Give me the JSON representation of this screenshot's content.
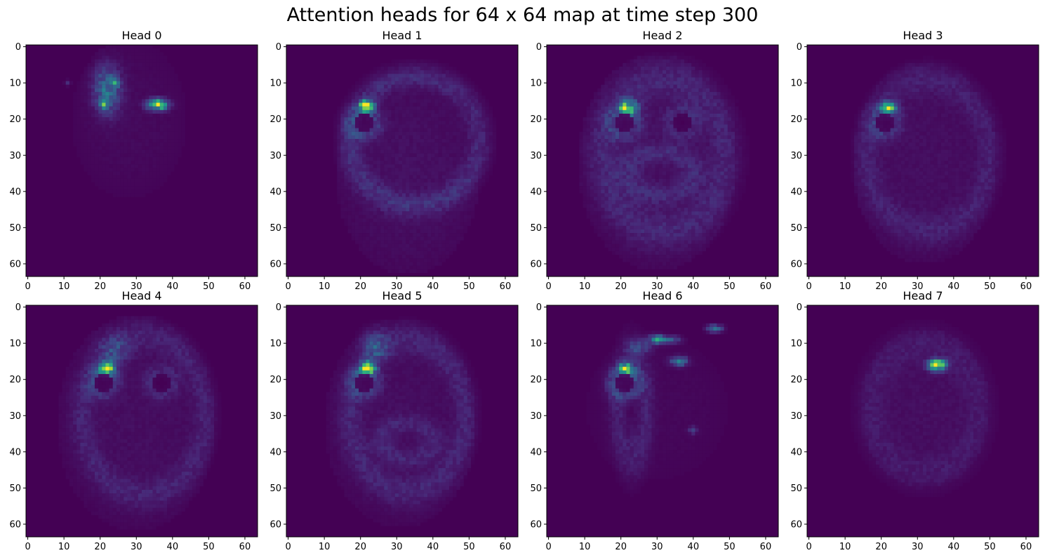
{
  "figure": {
    "title": "Attention heads for 64 x 64 map at time step 300"
  },
  "chart_data": [
    {
      "type": "heatmap",
      "title": "Head 0",
      "grid_size": 64,
      "xlim": [
        -0.5,
        63.5
      ],
      "ylim": [
        63.5,
        -0.5
      ],
      "xticks": [
        0,
        10,
        20,
        30,
        40,
        50,
        60
      ],
      "yticks": [
        0,
        10,
        20,
        30,
        40,
        50,
        60
      ],
      "colormap": "viridis",
      "hotspots": [
        {
          "x": 36,
          "y": 16,
          "rx": 2.6,
          "ry": 1.4,
          "v": 1.0
        },
        {
          "x": 22,
          "y": 12,
          "rx": 3.5,
          "ry": 6.0,
          "v": 0.42
        },
        {
          "x": 21,
          "y": 16,
          "rx": 1.0,
          "ry": 1.0,
          "v": 0.55
        },
        {
          "x": 24,
          "y": 10,
          "rx": 1.0,
          "ry": 1.0,
          "v": 0.45
        },
        {
          "x": 11,
          "y": 10,
          "rx": 0.8,
          "ry": 0.8,
          "v": 0.12
        }
      ],
      "background_regions": [
        {
          "x": 28,
          "y": 20,
          "rx": 16,
          "ry": 22,
          "v": 0.03
        }
      ]
    },
    {
      "type": "heatmap",
      "title": "Head 1",
      "grid_size": 64,
      "xlim": [
        -0.5,
        63.5
      ],
      "ylim": [
        63.5,
        -0.5
      ],
      "xticks": [
        0,
        10,
        20,
        30,
        40,
        50,
        60
      ],
      "yticks": [
        0,
        10,
        20,
        30,
        40,
        50,
        60
      ],
      "colormap": "viridis",
      "hotspots": [
        {
          "x": 22,
          "y": 16.5,
          "rx": 1.8,
          "ry": 1.4,
          "v": 1.0
        },
        {
          "x": 21,
          "y": 16,
          "rx": 1.0,
          "ry": 1.0,
          "v": 0.6
        }
      ],
      "rings": [
        {
          "x": 35,
          "y": 26,
          "rx": 18,
          "ry": 18,
          "w": 2.2,
          "v": 0.12
        },
        {
          "x": 21,
          "y": 21,
          "rx": 3.2,
          "ry": 3.0,
          "w": 1.6,
          "v": 0.16
        }
      ],
      "holes": [
        {
          "x": 21,
          "y": 21,
          "r": 2.5
        }
      ],
      "background_regions": [
        {
          "x": 33,
          "y": 35,
          "rx": 20,
          "ry": 28,
          "v": 0.05
        }
      ]
    },
    {
      "type": "heatmap",
      "title": "Head 2",
      "grid_size": 64,
      "xlim": [
        -0.5,
        63.5
      ],
      "ylim": [
        63.5,
        -0.5
      ],
      "xticks": [
        0,
        10,
        20,
        30,
        40,
        50,
        60
      ],
      "yticks": [
        0,
        10,
        20,
        30,
        40,
        50,
        60
      ],
      "colormap": "viridis",
      "hotspots": [
        {
          "x": 22,
          "y": 17,
          "rx": 2.4,
          "ry": 2.2,
          "v": 1.0
        },
        {
          "x": 21,
          "y": 17,
          "rx": 1.0,
          "ry": 1.0,
          "v": 0.7
        }
      ],
      "rings": [
        {
          "x": 32,
          "y": 30,
          "rx": 17,
          "ry": 21,
          "w": 3.0,
          "v": 0.16
        },
        {
          "x": 21,
          "y": 21,
          "rx": 3.4,
          "ry": 3.2,
          "w": 1.8,
          "v": 0.2
        },
        {
          "x": 37,
          "y": 21,
          "rx": 3.6,
          "ry": 3.4,
          "w": 1.6,
          "v": 0.14
        },
        {
          "x": 31,
          "y": 35,
          "rx": 9,
          "ry": 6,
          "w": 1.8,
          "v": 0.16
        }
      ],
      "holes": [
        {
          "x": 21,
          "y": 21,
          "r": 2.5
        },
        {
          "x": 37,
          "y": 21,
          "r": 2.6
        }
      ],
      "background_regions": [
        {
          "x": 30,
          "y": 32,
          "rx": 22,
          "ry": 30,
          "v": 0.08
        }
      ]
    },
    {
      "type": "heatmap",
      "title": "Head 3",
      "grid_size": 64,
      "xlim": [
        -0.5,
        63.5
      ],
      "ylim": [
        63.5,
        -0.5
      ],
      "xticks": [
        0,
        10,
        20,
        30,
        40,
        50,
        60
      ],
      "yticks": [
        0,
        10,
        20,
        30,
        40,
        50,
        60
      ],
      "colormap": "viridis",
      "hotspots": [
        {
          "x": 22,
          "y": 17,
          "rx": 2.0,
          "ry": 1.6,
          "v": 1.0
        }
      ],
      "rings": [
        {
          "x": 33,
          "y": 30,
          "rx": 17,
          "ry": 21,
          "w": 2.4,
          "v": 0.1
        },
        {
          "x": 21,
          "y": 21,
          "rx": 3.2,
          "ry": 3.0,
          "w": 1.6,
          "v": 0.16
        }
      ],
      "holes": [
        {
          "x": 21,
          "y": 21,
          "r": 2.5
        }
      ],
      "background_regions": [
        {
          "x": 32,
          "y": 32,
          "rx": 20,
          "ry": 28,
          "v": 0.06
        }
      ]
    },
    {
      "type": "heatmap",
      "title": "Head 4",
      "grid_size": 64,
      "xlim": [
        -0.5,
        63.5
      ],
      "ylim": [
        63.5,
        -0.5
      ],
      "xticks": [
        0,
        10,
        20,
        30,
        40,
        50,
        60
      ],
      "yticks": [
        0,
        10,
        20,
        30,
        40,
        50,
        60
      ],
      "colormap": "viridis",
      "hotspots": [
        {
          "x": 22,
          "y": 17,
          "rx": 2.0,
          "ry": 1.8,
          "v": 1.0
        },
        {
          "x": 24,
          "y": 12,
          "rx": 4.0,
          "ry": 4.0,
          "v": 0.2
        }
      ],
      "rings": [
        {
          "x": 32,
          "y": 30,
          "rx": 17,
          "ry": 22,
          "w": 2.2,
          "v": 0.1
        },
        {
          "x": 21,
          "y": 21,
          "rx": 3.0,
          "ry": 2.8,
          "w": 1.6,
          "v": 0.14
        },
        {
          "x": 37,
          "y": 21,
          "rx": 3.4,
          "ry": 3.2,
          "w": 1.4,
          "v": 0.1
        }
      ],
      "holes": [
        {
          "x": 21,
          "y": 21,
          "r": 2.4
        },
        {
          "x": 37,
          "y": 21,
          "r": 2.4
        }
      ],
      "background_regions": [
        {
          "x": 30,
          "y": 32,
          "rx": 22,
          "ry": 30,
          "v": 0.05
        }
      ]
    },
    {
      "type": "heatmap",
      "title": "Head 5",
      "grid_size": 64,
      "xlim": [
        -0.5,
        63.5
      ],
      "ylim": [
        63.5,
        -0.5
      ],
      "xticks": [
        0,
        10,
        20,
        30,
        40,
        50,
        60
      ],
      "yticks": [
        0,
        10,
        20,
        30,
        40,
        50,
        60
      ],
      "colormap": "viridis",
      "hotspots": [
        {
          "x": 22,
          "y": 17,
          "rx": 2.0,
          "ry": 1.8,
          "v": 1.0
        },
        {
          "x": 24,
          "y": 11,
          "rx": 3.5,
          "ry": 4.0,
          "v": 0.28
        }
      ],
      "rings": [
        {
          "x": 33,
          "y": 30,
          "rx": 16,
          "ry": 21,
          "w": 2.2,
          "v": 0.11
        },
        {
          "x": 21,
          "y": 21,
          "rx": 3.0,
          "ry": 2.8,
          "w": 1.6,
          "v": 0.15
        },
        {
          "x": 33,
          "y": 37,
          "rx": 7,
          "ry": 5,
          "w": 1.6,
          "v": 0.1
        }
      ],
      "holes": [
        {
          "x": 21,
          "y": 21,
          "r": 2.4
        }
      ],
      "background_regions": [
        {
          "x": 31,
          "y": 32,
          "rx": 21,
          "ry": 29,
          "v": 0.05
        }
      ]
    },
    {
      "type": "heatmap",
      "title": "Head 6",
      "grid_size": 64,
      "xlim": [
        -0.5,
        63.5
      ],
      "ylim": [
        63.5,
        -0.5
      ],
      "xticks": [
        0,
        10,
        20,
        30,
        40,
        50,
        60
      ],
      "yticks": [
        0,
        10,
        20,
        30,
        40,
        50,
        60
      ],
      "colormap": "viridis",
      "hotspots": [
        {
          "x": 21.5,
          "y": 17,
          "rx": 1.8,
          "ry": 1.6,
          "v": 1.0
        },
        {
          "x": 30,
          "y": 9,
          "rx": 2.2,
          "ry": 1.2,
          "v": 0.78
        },
        {
          "x": 36,
          "y": 15,
          "rx": 2.2,
          "ry": 1.2,
          "v": 0.72
        },
        {
          "x": 46,
          "y": 6,
          "rx": 2.0,
          "ry": 1.0,
          "v": 0.62
        },
        {
          "x": 34,
          "y": 9,
          "rx": 2.5,
          "ry": 1.0,
          "v": 0.4
        },
        {
          "x": 25,
          "y": 11,
          "rx": 3.0,
          "ry": 2.0,
          "v": 0.3
        },
        {
          "x": 40,
          "y": 34,
          "rx": 1.2,
          "ry": 1.0,
          "v": 0.3
        }
      ],
      "rings": [
        {
          "x": 21,
          "y": 21,
          "rx": 3.2,
          "ry": 3.0,
          "w": 1.6,
          "v": 0.22
        },
        {
          "x": 23,
          "y": 28,
          "rx": 4,
          "ry": 13,
          "w": 1.6,
          "v": 0.12
        }
      ],
      "holes": [
        {
          "x": 21,
          "y": 21,
          "r": 2.4
        }
      ],
      "background_regions": [
        {
          "x": 30,
          "y": 28,
          "rx": 20,
          "ry": 20,
          "v": 0.03
        }
      ]
    },
    {
      "type": "heatmap",
      "title": "Head 7",
      "grid_size": 64,
      "xlim": [
        -0.5,
        63.5
      ],
      "ylim": [
        63.5,
        -0.5
      ],
      "xticks": [
        0,
        10,
        20,
        30,
        40,
        50,
        60
      ],
      "yticks": [
        0,
        10,
        20,
        30,
        40,
        50,
        60
      ],
      "colormap": "viridis",
      "hotspots": [
        {
          "x": 35.5,
          "y": 16,
          "rx": 2.2,
          "ry": 1.4,
          "v": 1.0
        }
      ],
      "rings": [
        {
          "x": 32,
          "y": 28,
          "rx": 15,
          "ry": 18,
          "w": 3.0,
          "v": 0.05
        }
      ],
      "background_regions": [
        {
          "x": 32,
          "y": 28,
          "rx": 18,
          "ry": 22,
          "v": 0.04
        }
      ]
    }
  ]
}
